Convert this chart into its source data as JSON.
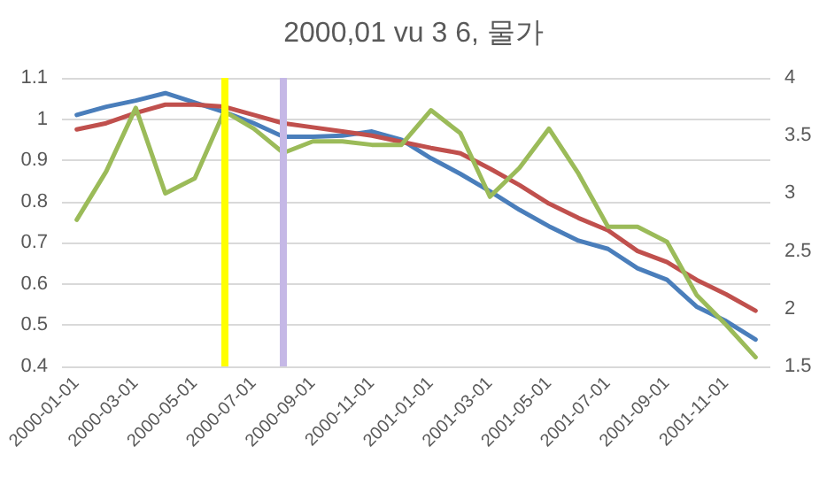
{
  "chart_data": {
    "type": "line",
    "title": "2000,01 vu 3 6, 물가",
    "x": [
      "2000-01",
      "2000-02",
      "2000-03",
      "2000-04",
      "2000-05",
      "2000-06",
      "2000-07",
      "2000-08",
      "2000-09",
      "2000-10",
      "2000-11",
      "2000-12",
      "2001-01",
      "2001-02",
      "2001-03",
      "2001-04",
      "2001-05",
      "2001-06",
      "2001-07",
      "2001-08",
      "2001-09",
      "2001-10",
      "2001-11",
      "2001-12"
    ],
    "xticks": [
      {
        "value": "2000-01",
        "label": "2000-01-01"
      },
      {
        "value": "2000-03",
        "label": "2000-03-01"
      },
      {
        "value": "2000-05",
        "label": "2000-05-01"
      },
      {
        "value": "2000-07",
        "label": "2000-07-01"
      },
      {
        "value": "2000-09",
        "label": "2000-09-01"
      },
      {
        "value": "2000-11",
        "label": "2000-11-01"
      },
      {
        "value": "2001-01",
        "label": "2001-01-01"
      },
      {
        "value": "2001-03",
        "label": "2001-03-01"
      },
      {
        "value": "2001-05",
        "label": "2001-05-01"
      },
      {
        "value": "2001-07",
        "label": "2001-07-01"
      },
      {
        "value": "2001-09",
        "label": "2001-09-01"
      },
      {
        "value": "2001-11",
        "label": "2001-11-01"
      }
    ],
    "xlim": [
      "1999-12-15",
      "2001-12-15"
    ],
    "series": [
      {
        "color": "#4a7ebb",
        "values": [
          1.01,
          1.03,
          1.045,
          1.063,
          1.04,
          1.017,
          0.99,
          0.957,
          0.957,
          0.96,
          0.97,
          0.95,
          0.905,
          0.867,
          0.825,
          0.78,
          0.74,
          0.705,
          0.685,
          0.638,
          0.61,
          0.545,
          0.51,
          0.465
        ]
      },
      {
        "color": "#c0504d",
        "values": [
          0.975,
          0.99,
          1.015,
          1.035,
          1.035,
          1.03,
          1.01,
          0.99,
          0.98,
          0.97,
          0.96,
          0.945,
          0.93,
          0.917,
          0.88,
          0.84,
          0.795,
          0.76,
          0.73,
          0.68,
          0.653,
          0.61,
          0.575,
          0.535
        ]
      },
      {
        "color": "#9bbb59",
        "axis": "y2",
        "values": [
          2.77,
          3.19,
          3.74,
          3.0,
          3.13,
          3.71,
          3.56,
          3.35,
          3.45,
          3.45,
          3.42,
          3.42,
          3.72,
          3.52,
          2.97,
          3.22,
          3.56,
          3.17,
          2.71,
          2.71,
          2.58,
          2.12,
          1.86,
          1.58
        ]
      }
    ],
    "ylim": [
      0.4,
      1.1
    ],
    "yticks": [
      0.4,
      0.5,
      0.6,
      0.7,
      0.8,
      0.9,
      1,
      1.1
    ],
    "y2lim": [
      1.5,
      4
    ],
    "y2ticks": [
      1.5,
      2,
      2.5,
      3,
      3.5,
      4
    ],
    "ref_lines": [
      {
        "axis": "x",
        "value": "2000-06",
        "color": "#ffff00"
      },
      {
        "axis": "x",
        "value": "2000-08",
        "color": "#c5b8e6"
      }
    ],
    "grid": "y",
    "marker": "none",
    "line_style": "solid"
  }
}
